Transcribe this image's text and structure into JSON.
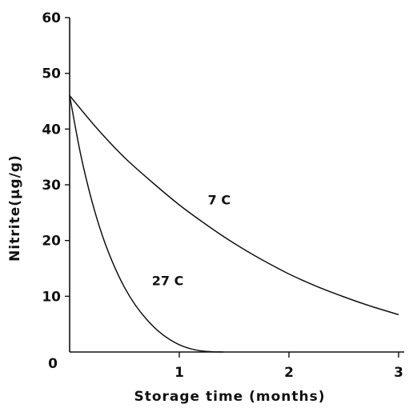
{
  "chart_data": {
    "type": "line",
    "title": "",
    "xlabel": "Storage time (months)",
    "ylabel": "Nitrite(µg/g)",
    "xlim": [
      0,
      3
    ],
    "ylim": [
      0,
      60
    ],
    "x_ticks": [
      {
        "value": 1,
        "label": "1"
      },
      {
        "value": 2,
        "label": "2"
      },
      {
        "value": 3,
        "label": "3"
      }
    ],
    "y_ticks": [
      {
        "value": 0,
        "label": "0"
      },
      {
        "value": 10,
        "label": "10"
      },
      {
        "value": 20,
        "label": "20"
      },
      {
        "value": 30,
        "label": "30"
      },
      {
        "value": 40,
        "label": "40"
      },
      {
        "value": 50,
        "label": "50"
      },
      {
        "value": 60,
        "label": "60"
      }
    ],
    "grid": false,
    "legend": "none",
    "series": [
      {
        "name": "7 C",
        "x": [
          0,
          0.25,
          0.5,
          0.75,
          1.0,
          1.25,
          1.5,
          1.75,
          2.0,
          2.25,
          2.5,
          2.75,
          3.0
        ],
        "y": [
          46,
          40.1,
          34.9,
          30.5,
          26.4,
          22.8,
          19.5,
          16.6,
          14.0,
          11.8,
          9.9,
          8.2,
          6.7
        ]
      },
      {
        "name": "27 C",
        "x": [
          0,
          0.1,
          0.2,
          0.3,
          0.4,
          0.5,
          0.6,
          0.7,
          0.8,
          0.9,
          1.0,
          1.1,
          1.2,
          1.3,
          1.4
        ],
        "y": [
          46,
          35.5,
          27.3,
          20.8,
          15.7,
          11.6,
          8.4,
          5.9,
          3.9,
          2.4,
          1.3,
          0.6,
          0.2,
          0.05,
          0
        ]
      }
    ],
    "series_labels": [
      {
        "text": "7 C",
        "x": 1.26,
        "y": 26.5
      },
      {
        "text": "27 C",
        "x": 0.75,
        "y": 12.0
      }
    ]
  }
}
